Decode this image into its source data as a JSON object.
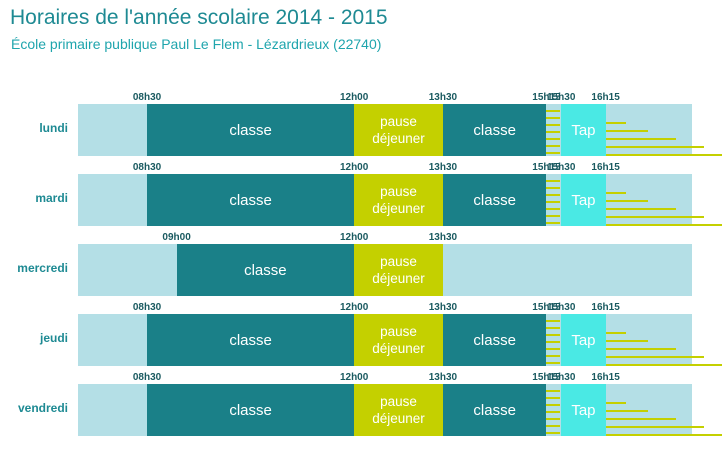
{
  "header": {
    "title": "Horaires de l'année scolaire 2014 - 2015",
    "subtitle": "École primaire publique Paul Le Flem - Lézardrieux (22740)"
  },
  "colors": {
    "classe": "#1a8088",
    "pause": "#c4d000",
    "tap": "#4ae9e4",
    "track": "#b4dfe6",
    "text": "#1e8a93"
  },
  "days": [
    {
      "name": "lundi",
      "ticks": [
        "08h30",
        "12h00",
        "13h30",
        "15h15",
        "15h30",
        "16h15"
      ],
      "blocks": [
        {
          "type": "classe",
          "label": "classe",
          "start": "08h30",
          "end": "12h00"
        },
        {
          "type": "pause",
          "label": "pause déjeuner",
          "start": "12h00",
          "end": "13h30"
        },
        {
          "type": "classe",
          "label": "classe",
          "start": "13h30",
          "end": "15h15"
        },
        {
          "type": "tap",
          "label": "Tap",
          "start": "15h30",
          "end": "16h15"
        }
      ]
    },
    {
      "name": "mardi",
      "ticks": [
        "08h30",
        "12h00",
        "13h30",
        "15h15",
        "15h30",
        "16h15"
      ],
      "blocks": [
        {
          "type": "classe",
          "label": "classe",
          "start": "08h30",
          "end": "12h00"
        },
        {
          "type": "pause",
          "label": "pause déjeuner",
          "start": "12h00",
          "end": "13h30"
        },
        {
          "type": "classe",
          "label": "classe",
          "start": "13h30",
          "end": "15h15"
        },
        {
          "type": "tap",
          "label": "Tap",
          "start": "15h30",
          "end": "16h15"
        }
      ]
    },
    {
      "name": "mercredi",
      "ticks": [
        "09h00",
        "12h00",
        "13h30"
      ],
      "blocks": [
        {
          "type": "classe",
          "label": "classe",
          "start": "09h00",
          "end": "12h00"
        },
        {
          "type": "pause",
          "label": "pause déjeuner",
          "start": "12h00",
          "end": "13h30"
        }
      ]
    },
    {
      "name": "jeudi",
      "ticks": [
        "08h30",
        "12h00",
        "13h30",
        "15h15",
        "15h30",
        "16h15"
      ],
      "blocks": [
        {
          "type": "classe",
          "label": "classe",
          "start": "08h30",
          "end": "12h00"
        },
        {
          "type": "pause",
          "label": "pause déjeuner",
          "start": "12h00",
          "end": "13h30"
        },
        {
          "type": "classe",
          "label": "classe",
          "start": "13h30",
          "end": "15h15"
        },
        {
          "type": "tap",
          "label": "Tap",
          "start": "15h30",
          "end": "16h15"
        }
      ]
    },
    {
      "name": "vendredi",
      "ticks": [
        "08h30",
        "12h00",
        "13h30",
        "15h15",
        "15h30",
        "16h15"
      ],
      "blocks": [
        {
          "type": "classe",
          "label": "classe",
          "start": "08h30",
          "end": "12h00"
        },
        {
          "type": "pause",
          "label": "pause déjeuner",
          "start": "12h00",
          "end": "13h30"
        },
        {
          "type": "classe",
          "label": "classe",
          "start": "13h30",
          "end": "15h15"
        },
        {
          "type": "tap",
          "label": "Tap",
          "start": "15h30",
          "end": "16h15"
        }
      ]
    }
  ]
}
